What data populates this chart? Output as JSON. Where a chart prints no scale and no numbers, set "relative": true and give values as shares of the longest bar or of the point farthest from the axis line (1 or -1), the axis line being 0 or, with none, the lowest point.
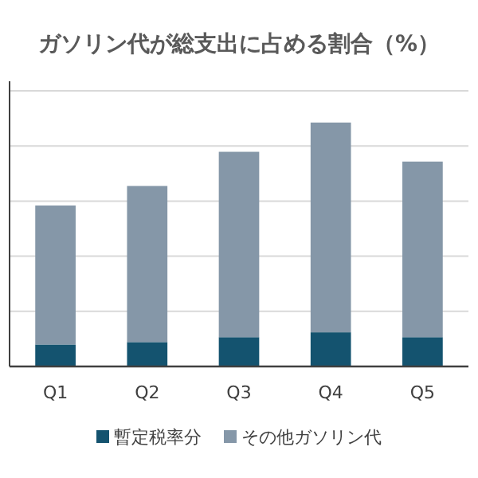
{
  "chart_data": {
    "type": "bar",
    "title": "ガソリン代が総支出に占める割合（%）",
    "categories": [
      "Q1",
      "Q2",
      "Q3",
      "Q4",
      "Q5"
    ],
    "stacked": true,
    "relative": true,
    "grid": "y",
    "legend": "bottom",
    "series": [
      {
        "name": "暫定税率分",
        "color": "#14536f",
        "values": [
          0.09,
          0.1,
          0.12,
          0.14,
          0.12
        ]
      },
      {
        "name": "その他ガソリン代",
        "color": "#8597a8",
        "values": [
          0.57,
          0.64,
          0.76,
          0.86,
          0.72
        ]
      }
    ]
  }
}
